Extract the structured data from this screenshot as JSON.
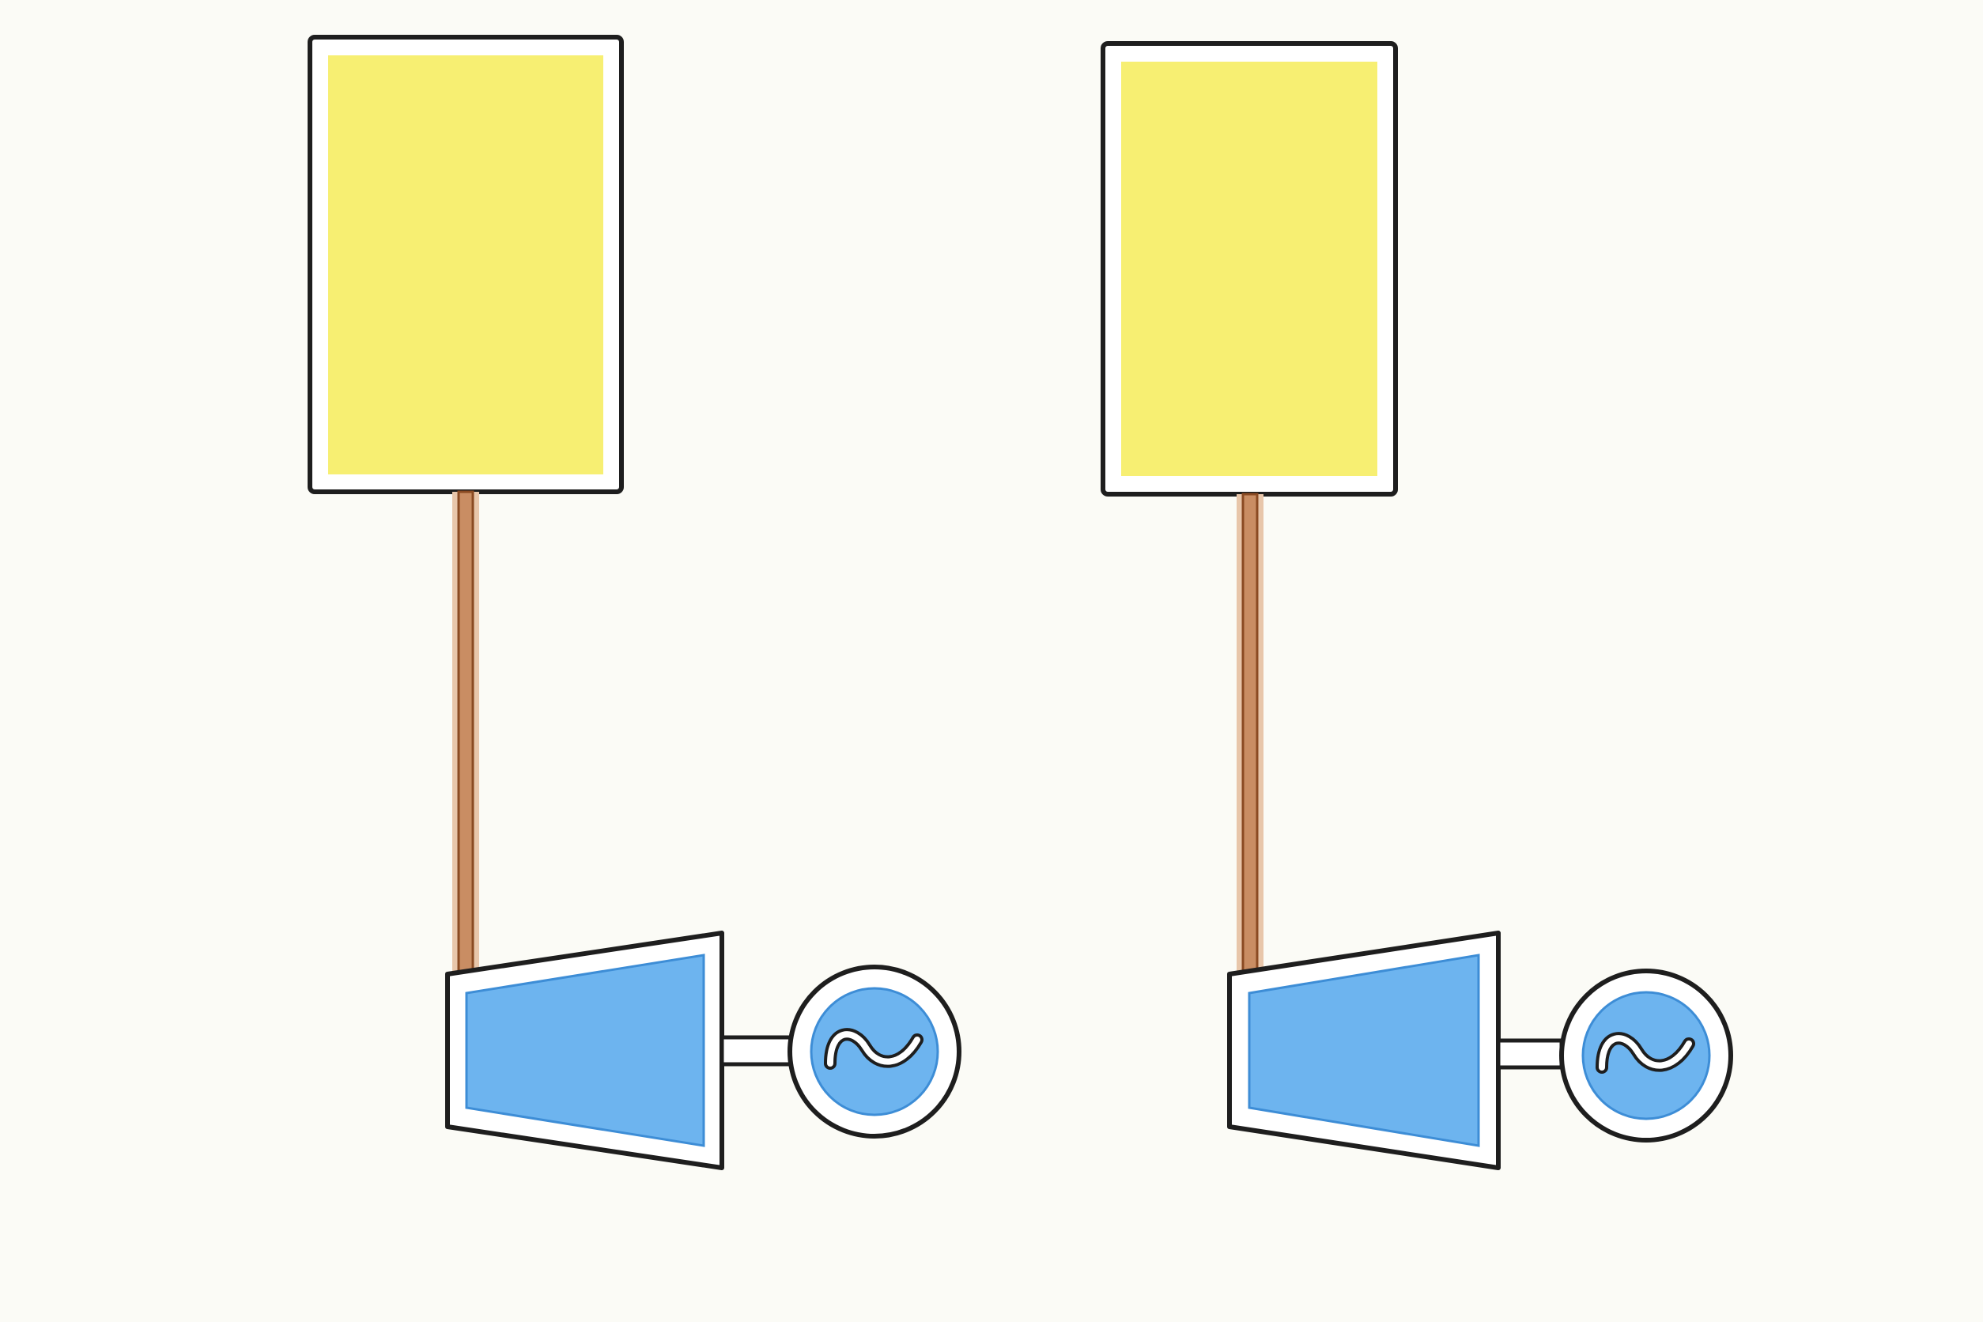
{
  "diagram": {
    "background": "#fbfbf6",
    "colors": {
      "outline": "#1e1e1e",
      "panel_fill": "#f7ef72",
      "turbine_fill": "#6db4ef",
      "generator_fill": "#6db4ef",
      "pipe_fill": "#c98d63",
      "pipe_stroke": "#8a4a22",
      "frame_fill": "#ffffff"
    },
    "units": [
      {
        "id": "left",
        "collector": {
          "shape": "rectangle",
          "icon": "yellow-panel"
        },
        "pipe": {
          "icon": "copper-pipe"
        },
        "turbine": {
          "icon": "turbine-trapezoid"
        },
        "generator": {
          "icon": "ac-generator-circle",
          "symbol": "∿"
        }
      },
      {
        "id": "right",
        "collector": {
          "shape": "rectangle",
          "icon": "yellow-panel"
        },
        "pipe": {
          "icon": "copper-pipe"
        },
        "turbine": {
          "icon": "turbine-trapezoid"
        },
        "generator": {
          "icon": "ac-generator-circle",
          "symbol": "∿"
        }
      }
    ]
  }
}
